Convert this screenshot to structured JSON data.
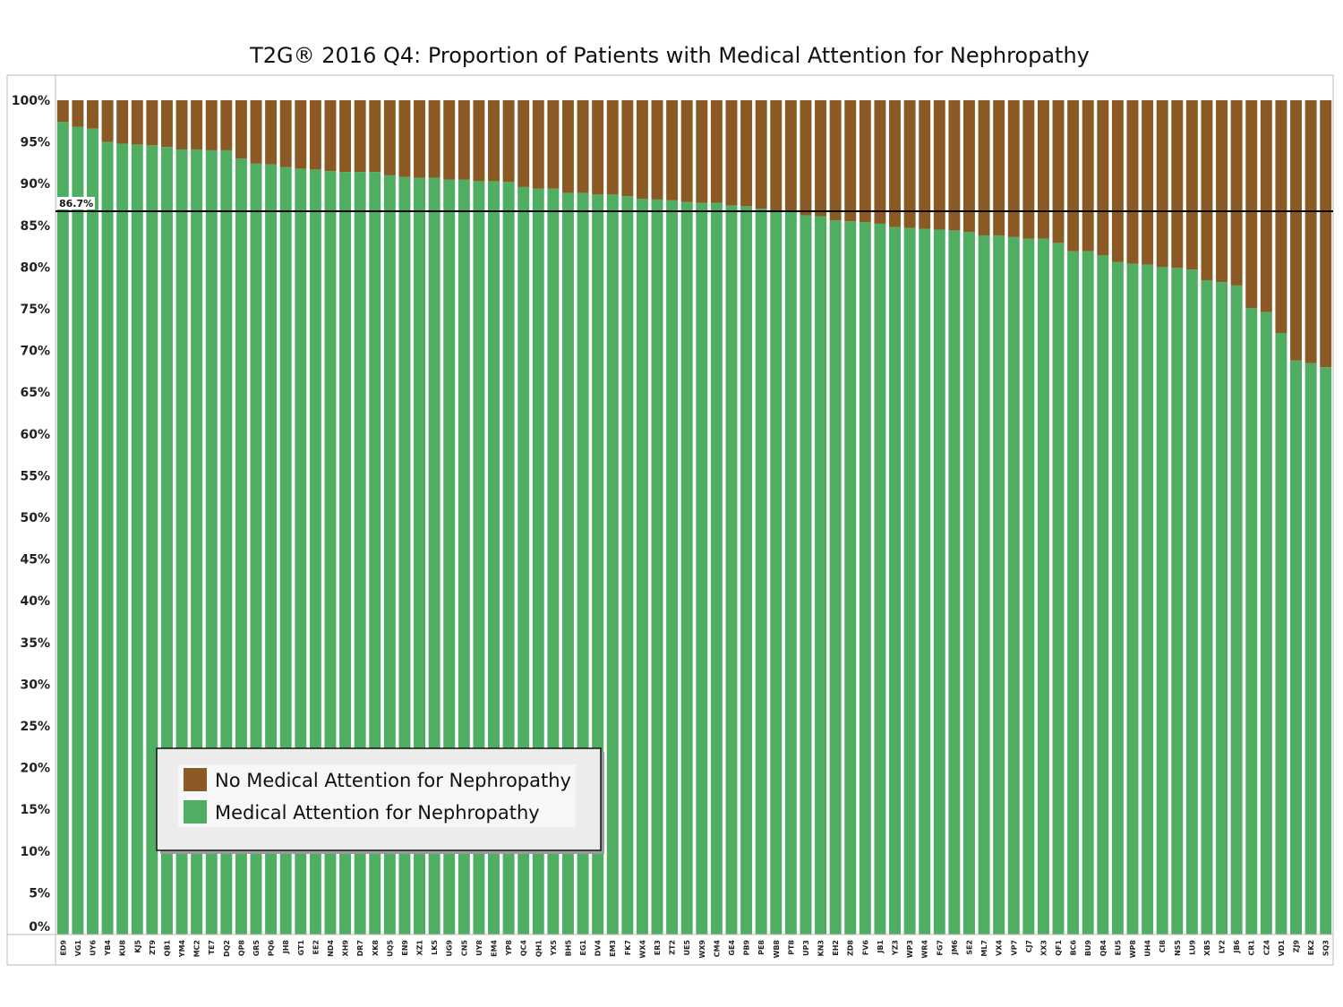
{
  "chart_data": {
    "type": "bar",
    "stacked": true,
    "title": "T2G® 2016 Q4: Proportion of Patients with Medical Attention for Nephropathy",
    "xlabel": "",
    "ylabel": "",
    "ylim": [
      0,
      100
    ],
    "y_ticks": [
      {
        "value": 0,
        "label": "0%"
      },
      {
        "value": 5,
        "label": "5%"
      },
      {
        "value": 10,
        "label": "10%"
      },
      {
        "value": 15,
        "label": "15%"
      },
      {
        "value": 20,
        "label": "20%"
      },
      {
        "value": 25,
        "label": "25%"
      },
      {
        "value": 30,
        "label": "30%"
      },
      {
        "value": 35,
        "label": "35%"
      },
      {
        "value": 40,
        "label": "40%"
      },
      {
        "value": 45,
        "label": "45%"
      },
      {
        "value": 50,
        "label": "50%"
      },
      {
        "value": 55,
        "label": "55%"
      },
      {
        "value": 60,
        "label": "60%"
      },
      {
        "value": 65,
        "label": "65%"
      },
      {
        "value": 70,
        "label": "70%"
      },
      {
        "value": 75,
        "label": "75%"
      },
      {
        "value": 80,
        "label": "80%"
      },
      {
        "value": 85,
        "label": "85%"
      },
      {
        "value": 90,
        "label": "90%"
      },
      {
        "value": 95,
        "label": "95%"
      },
      {
        "value": 100,
        "label": "100%"
      }
    ],
    "grid": false,
    "legend_position": "bottom-left",
    "reference_line": {
      "value": 86.7,
      "label": "86.7%",
      "color": "#000000"
    },
    "categories": [
      "ED9",
      "VG1",
      "UY6",
      "YB4",
      "KU8",
      "KJ5",
      "ZT9",
      "QB1",
      "YM4",
      "MC2",
      "TE7",
      "DQ2",
      "QP8",
      "GR5",
      "PQ6",
      "JH8",
      "GT1",
      "EE2",
      "ND4",
      "XH9",
      "DR7",
      "XK8",
      "UQ5",
      "EN9",
      "XZ1",
      "LK5",
      "UG9",
      "CN5",
      "UY8",
      "EM4",
      "YP8",
      "QC4",
      "QH1",
      "YX5",
      "BH5",
      "EG1",
      "DV4",
      "EM3",
      "FK7",
      "WX4",
      "ER3",
      "ZT2",
      "UE5",
      "WX9",
      "CM4",
      "GE4",
      "PB9",
      "PE8",
      "WB8",
      "PT8",
      "UP3",
      "KN3",
      "EH2",
      "ZD8",
      "FV6",
      "JB1",
      "YZ3",
      "WP3",
      "WR4",
      "FG7",
      "JM6",
      "SE2",
      "ML7",
      "VX4",
      "VP7",
      "CJ7",
      "XX3",
      "QF1",
      "BC6",
      "BU9",
      "QR4",
      "EU5",
      "WP8",
      "UH4",
      "CI8",
      "NS5",
      "LU9",
      "XB5",
      "LY2",
      "JB6",
      "CR1",
      "CZ4",
      "VD1",
      "ZJ9",
      "EK2",
      "SQ3"
    ],
    "series": [
      {
        "name": "No Medical Attention for Nephropathy",
        "color": "#8b5a24",
        "values": [
          2.6,
          3.2,
          3.4,
          5.0,
          5.2,
          5.3,
          5.4,
          5.6,
          5.9,
          5.9,
          6.0,
          6.0,
          7.0,
          7.6,
          7.7,
          8.0,
          8.2,
          8.3,
          8.5,
          8.6,
          8.6,
          8.6,
          9.0,
          9.2,
          9.3,
          9.3,
          9.5,
          9.5,
          9.7,
          9.7,
          9.8,
          10.4,
          10.6,
          10.6,
          11.1,
          11.1,
          11.3,
          11.3,
          11.5,
          11.8,
          11.9,
          12.0,
          12.2,
          12.3,
          12.3,
          12.6,
          12.7,
          13.0,
          13.3,
          13.4,
          13.8,
          13.9,
          14.4,
          14.5,
          14.6,
          14.8,
          15.2,
          15.3,
          15.4,
          15.5,
          15.6,
          15.8,
          16.2,
          16.2,
          16.4,
          16.6,
          16.6,
          17.1,
          18.1,
          18.1,
          18.6,
          19.4,
          19.6,
          19.7,
          20.0,
          20.1,
          20.3,
          21.6,
          21.8,
          22.2,
          24.9,
          25.4,
          27.9,
          31.2,
          31.5,
          32.0
        ]
      },
      {
        "name": "Medical Attention for Nephropathy",
        "color": "#4fae62",
        "values": [
          97.4,
          96.8,
          96.6,
          95.0,
          94.8,
          94.7,
          94.6,
          94.4,
          94.1,
          94.1,
          94.0,
          94.0,
          93.0,
          92.4,
          92.3,
          92.0,
          91.8,
          91.7,
          91.5,
          91.4,
          91.4,
          91.4,
          91.0,
          90.8,
          90.7,
          90.7,
          90.5,
          90.5,
          90.3,
          90.3,
          90.2,
          89.6,
          89.4,
          89.4,
          88.9,
          88.9,
          88.7,
          88.7,
          88.5,
          88.2,
          88.1,
          88.0,
          87.8,
          87.7,
          87.7,
          87.4,
          87.3,
          87.0,
          86.7,
          86.6,
          86.2,
          86.1,
          85.6,
          85.5,
          85.4,
          85.2,
          84.8,
          84.7,
          84.6,
          84.5,
          84.4,
          84.2,
          83.8,
          83.8,
          83.6,
          83.4,
          83.4,
          82.9,
          81.9,
          81.9,
          81.4,
          80.6,
          80.4,
          80.3,
          80.0,
          79.9,
          79.7,
          78.4,
          78.2,
          77.8,
          75.1,
          74.6,
          72.1,
          68.8,
          68.5,
          68.0
        ]
      }
    ]
  }
}
